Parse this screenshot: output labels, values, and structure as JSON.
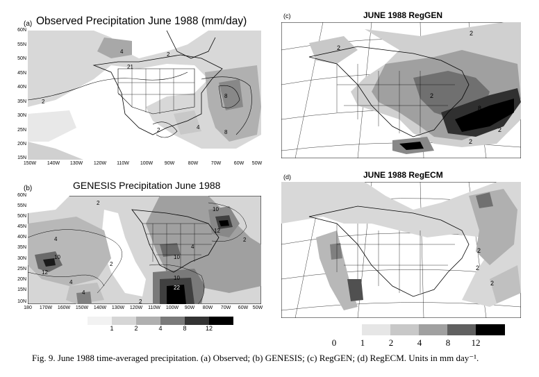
{
  "panels": {
    "a": {
      "label": "(a)",
      "title": "Observed Precipitation June 1988  (mm/day)",
      "yticks": [
        "60N",
        "55N",
        "50N",
        "45N",
        "40N",
        "35N",
        "30N",
        "25N",
        "20N",
        "15N"
      ],
      "xticks": [
        "150W",
        "140W",
        "130W",
        "120W",
        "110W",
        "100W",
        "90W",
        "80W",
        "70W",
        "60W",
        "50W"
      ],
      "contour_labels": [
        "4",
        "2",
        "21",
        "2",
        "8",
        "8",
        "4",
        "2"
      ]
    },
    "b": {
      "label": "(b)",
      "title": "GENESIS Precipitation June 1988",
      "yticks": [
        "60N",
        "55N",
        "50N",
        "45N",
        "40N",
        "35N",
        "30N",
        "25N",
        "20N",
        "15N",
        "10N"
      ],
      "xticks": [
        "180",
        "170W",
        "160W",
        "150W",
        "140W",
        "130W",
        "120W",
        "110W",
        "100W",
        "90W",
        "80W",
        "70W",
        "60W",
        "50W"
      ],
      "contour_labels": [
        "2",
        "4",
        "10",
        "12",
        "4",
        "2",
        "10",
        "12",
        "4",
        "10",
        "22",
        "10",
        "4",
        "2",
        "2"
      ]
    },
    "c": {
      "label": "(c)",
      "title": "JUNE 1988 RegGEN",
      "contour_labels": [
        "2",
        "2",
        "2",
        "8",
        "2",
        "2"
      ]
    },
    "d": {
      "label": "(d)",
      "title": "JUNE 1988 RegECM",
      "contour_labels": [
        "2",
        "2",
        "2"
      ]
    }
  },
  "colorbar_small": {
    "labels": [
      "1",
      "2",
      "4",
      "8",
      "12"
    ],
    "colors": [
      "#f2f2f2",
      "#d6d6d6",
      "#b0b0b0",
      "#7a7a7a",
      "#333333",
      "#000000"
    ]
  },
  "colorbar_large": {
    "labels": [
      "0",
      "1",
      "2",
      "4",
      "8",
      "12"
    ],
    "colors": [
      "#e6e6e6",
      "#c8c8c8",
      "#a0a0a0",
      "#606060",
      "#000000"
    ]
  },
  "caption": "Fig. 9. June 1988 time-averaged precipitation. (a) Observed; (b) GENESIS; (c) RegGEN; (d) RegECM. Units in mm day⁻¹."
}
